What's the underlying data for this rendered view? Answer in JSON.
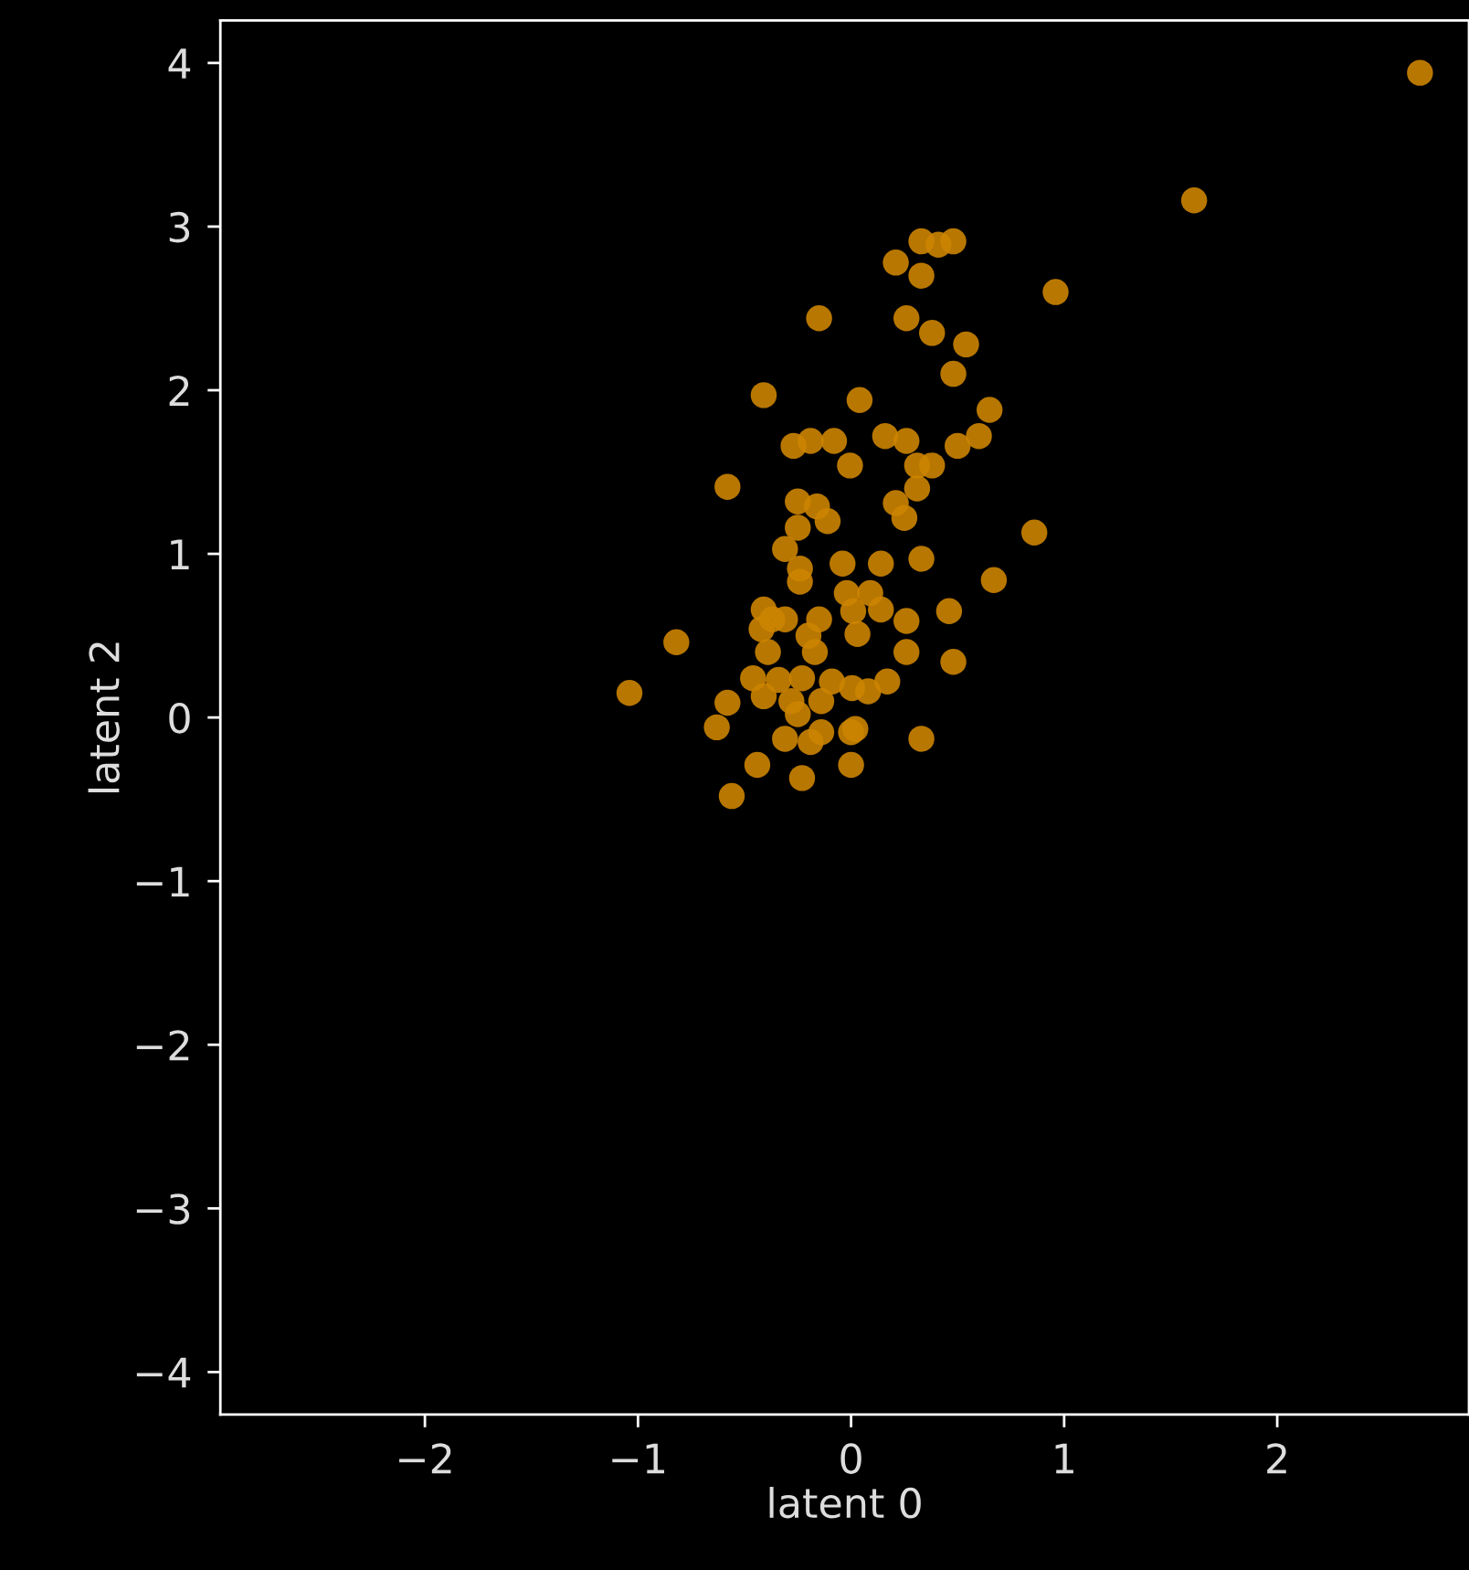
{
  "chart_data": {
    "type": "scatter",
    "xlabel": "latent 0",
    "ylabel": "latent 2",
    "xlim": [
      -2.96,
      2.9
    ],
    "ylim": [
      -4.26,
      4.26
    ],
    "xticks": [
      {
        "value": -2,
        "label": "−2"
      },
      {
        "value": -1,
        "label": "−1"
      },
      0,
      1,
      2
    ],
    "yticks": [
      {
        "value": -4,
        "label": "−4"
      },
      {
        "value": -3,
        "label": "−3"
      },
      {
        "value": -2,
        "label": "−2"
      },
      {
        "value": -1,
        "label": "−1"
      },
      0,
      1,
      2,
      3,
      4
    ],
    "grid": false,
    "marker": "circle",
    "series": [
      {
        "color": "#cc8400",
        "x": [
          2.67,
          1.61,
          0.33,
          0.41,
          0.48,
          0.21,
          0.33,
          0.96,
          -0.15,
          0.26,
          0.38,
          0.54,
          0.48,
          -0.41,
          0.04,
          0.65,
          0.16,
          0.26,
          0.6,
          0.5,
          -0.27,
          -0.19,
          -0.08,
          -0.005,
          0.31,
          0.38,
          0.31,
          -0.58,
          -0.25,
          -0.16,
          -0.11,
          0.21,
          0.25,
          -0.25,
          -0.31,
          0.86,
          0.33,
          -0.04,
          0.14,
          -0.24,
          -0.24,
          0.67,
          -0.02,
          0.09,
          -0.41,
          0.46,
          -0.37,
          -0.31,
          -0.15,
          0.01,
          0.14,
          0.26,
          -0.42,
          -0.2,
          0.03,
          -0.82,
          -0.39,
          -0.17,
          0.26,
          0.48,
          -0.46,
          -0.34,
          -0.23,
          -0.09,
          0.005,
          0.17,
          -1.04,
          -0.41,
          -0.28,
          -0.14,
          0.08,
          -0.58,
          -0.25,
          -0.63,
          -0.31,
          -0.14,
          0,
          0.33,
          -0.19,
          -0.44,
          0,
          -0.23,
          -0.56,
          0.02
        ],
        "values": [
          3.94,
          3.16,
          2.91,
          2.89,
          2.91,
          2.78,
          2.7,
          2.6,
          2.44,
          2.44,
          2.35,
          2.28,
          2.1,
          1.97,
          1.94,
          1.88,
          1.72,
          1.69,
          1.72,
          1.66,
          1.66,
          1.69,
          1.69,
          1.54,
          1.54,
          1.54,
          1.4,
          1.41,
          1.32,
          1.29,
          1.2,
          1.31,
          1.22,
          1.16,
          1.03,
          1.13,
          0.97,
          0.94,
          0.94,
          0.91,
          0.83,
          0.84,
          0.76,
          0.76,
          0.66,
          0.65,
          0.6,
          0.6,
          0.6,
          0.65,
          0.66,
          0.59,
          0.54,
          0.5,
          0.51,
          0.46,
          0.4,
          0.4,
          0.4,
          0.34,
          0.24,
          0.23,
          0.24,
          0.22,
          0.18,
          0.22,
          0.15,
          0.13,
          0.1,
          0.1,
          0.16,
          0.09,
          0.02,
          -0.06,
          -0.13,
          -0.09,
          -0.09,
          -0.13,
          -0.15,
          -0.29,
          -0.29,
          -0.37,
          -0.48,
          -0.07
        ]
      }
    ]
  }
}
